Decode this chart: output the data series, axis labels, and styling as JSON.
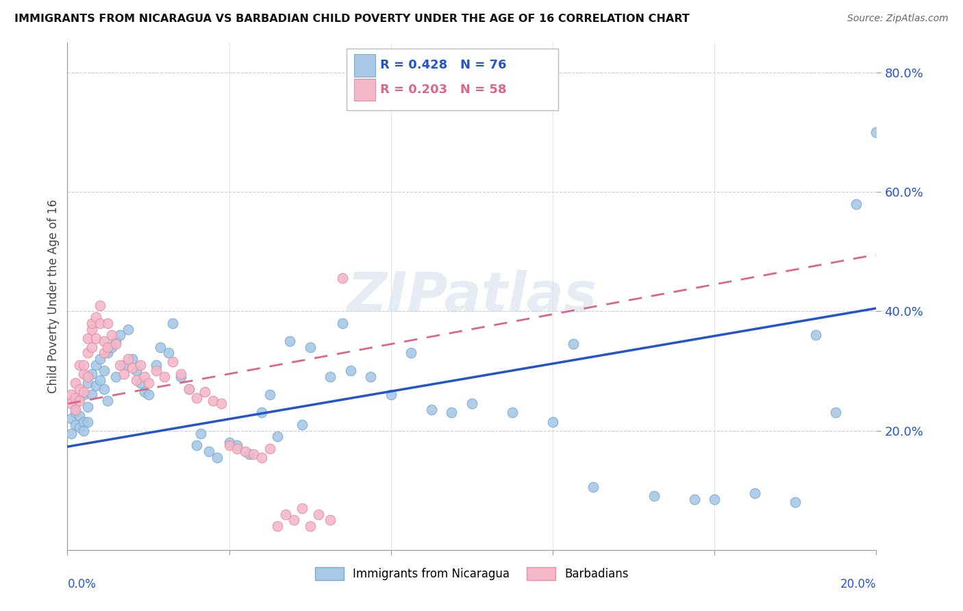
{
  "title": "IMMIGRANTS FROM NICARAGUA VS BARBADIAN CHILD POVERTY UNDER THE AGE OF 16 CORRELATION CHART",
  "source": "Source: ZipAtlas.com",
  "ylabel": "Child Poverty Under the Age of 16",
  "legend_label_blue": "Immigrants from Nicaragua",
  "legend_label_pink": "Barbadians",
  "blue_color": "#a8c8e8",
  "pink_color": "#f4b8c8",
  "blue_edge_color": "#7aaace",
  "pink_edge_color": "#e090a8",
  "blue_line_color": "#2255cc",
  "pink_line_color": "#dd6688",
  "blue_line_x": [
    0.0,
    0.2
  ],
  "blue_line_y": [
    0.173,
    0.405
  ],
  "pink_line_x": [
    0.0,
    0.2
  ],
  "pink_line_y": [
    0.245,
    0.495
  ],
  "xmin": 0.0,
  "xmax": 0.2,
  "ymin": 0.0,
  "ymax": 0.85,
  "ytick_vals": [
    0.2,
    0.4,
    0.6,
    0.8
  ],
  "ytick_labels": [
    "20.0%",
    "40.0%",
    "60.0%",
    "80.0%"
  ],
  "blue_x": [
    0.001,
    0.001,
    0.002,
    0.002,
    0.002,
    0.003,
    0.003,
    0.003,
    0.004,
    0.004,
    0.004,
    0.005,
    0.005,
    0.005,
    0.006,
    0.006,
    0.007,
    0.007,
    0.008,
    0.008,
    0.009,
    0.009,
    0.01,
    0.01,
    0.011,
    0.012,
    0.012,
    0.013,
    0.014,
    0.015,
    0.016,
    0.017,
    0.018,
    0.019,
    0.02,
    0.022,
    0.023,
    0.025,
    0.026,
    0.028,
    0.03,
    0.032,
    0.033,
    0.035,
    0.037,
    0.04,
    0.042,
    0.045,
    0.048,
    0.05,
    0.052,
    0.055,
    0.058,
    0.06,
    0.065,
    0.068,
    0.07,
    0.075,
    0.08,
    0.085,
    0.09,
    0.095,
    0.1,
    0.11,
    0.12,
    0.125,
    0.13,
    0.145,
    0.155,
    0.16,
    0.17,
    0.18,
    0.185,
    0.19,
    0.195,
    0.2
  ],
  "blue_y": [
    0.22,
    0.195,
    0.245,
    0.21,
    0.23,
    0.255,
    0.225,
    0.205,
    0.26,
    0.215,
    0.2,
    0.28,
    0.24,
    0.215,
    0.295,
    0.26,
    0.31,
    0.275,
    0.32,
    0.285,
    0.3,
    0.27,
    0.33,
    0.25,
    0.34,
    0.35,
    0.29,
    0.36,
    0.31,
    0.37,
    0.32,
    0.3,
    0.28,
    0.265,
    0.26,
    0.31,
    0.34,
    0.33,
    0.38,
    0.29,
    0.27,
    0.175,
    0.195,
    0.165,
    0.155,
    0.18,
    0.175,
    0.16,
    0.23,
    0.26,
    0.19,
    0.35,
    0.21,
    0.34,
    0.29,
    0.38,
    0.3,
    0.29,
    0.26,
    0.33,
    0.235,
    0.23,
    0.245,
    0.23,
    0.215,
    0.345,
    0.105,
    0.09,
    0.085,
    0.085,
    0.095,
    0.08,
    0.36,
    0.23,
    0.58,
    0.7
  ],
  "pink_x": [
    0.001,
    0.001,
    0.002,
    0.002,
    0.002,
    0.003,
    0.003,
    0.003,
    0.004,
    0.004,
    0.004,
    0.005,
    0.005,
    0.005,
    0.006,
    0.006,
    0.006,
    0.007,
    0.007,
    0.008,
    0.008,
    0.009,
    0.009,
    0.01,
    0.01,
    0.011,
    0.012,
    0.013,
    0.014,
    0.015,
    0.016,
    0.017,
    0.018,
    0.019,
    0.02,
    0.022,
    0.024,
    0.026,
    0.028,
    0.03,
    0.032,
    0.034,
    0.036,
    0.038,
    0.04,
    0.042,
    0.044,
    0.046,
    0.048,
    0.05,
    0.052,
    0.054,
    0.056,
    0.058,
    0.06,
    0.062,
    0.065,
    0.068
  ],
  "pink_y": [
    0.26,
    0.245,
    0.28,
    0.255,
    0.235,
    0.31,
    0.27,
    0.25,
    0.295,
    0.265,
    0.31,
    0.33,
    0.29,
    0.355,
    0.37,
    0.34,
    0.38,
    0.39,
    0.355,
    0.38,
    0.41,
    0.35,
    0.33,
    0.38,
    0.34,
    0.36,
    0.345,
    0.31,
    0.295,
    0.32,
    0.305,
    0.285,
    0.31,
    0.29,
    0.28,
    0.3,
    0.29,
    0.315,
    0.295,
    0.27,
    0.255,
    0.265,
    0.25,
    0.245,
    0.175,
    0.17,
    0.165,
    0.16,
    0.155,
    0.17,
    0.04,
    0.06,
    0.05,
    0.07,
    0.04,
    0.06,
    0.05,
    0.455
  ]
}
